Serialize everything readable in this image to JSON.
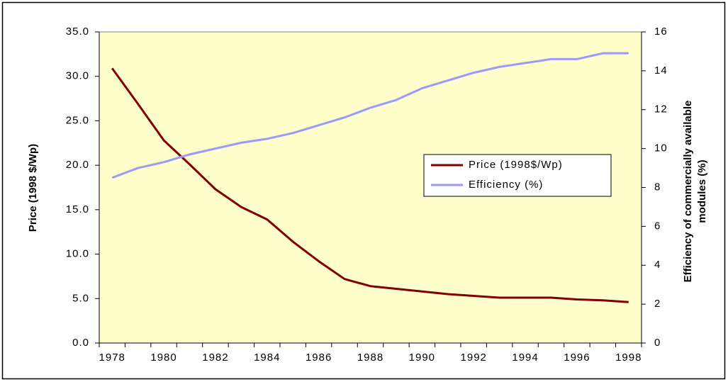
{
  "chart_data": {
    "type": "line",
    "categories": [
      "1978",
      null,
      "1980",
      null,
      "1982",
      null,
      "1984",
      null,
      "1986",
      null,
      "1988",
      null,
      "1990",
      null,
      "1992",
      null,
      "1994",
      null,
      "1996",
      null,
      "1998"
    ],
    "series": [
      {
        "name": "Price (1998$/Wp)",
        "color": "#800000",
        "axis": "y",
        "values": [
          30.9,
          26.9,
          22.8,
          20.1,
          17.3,
          15.3,
          13.9,
          11.4,
          9.2,
          7.2,
          6.4,
          6.1,
          5.8,
          5.5,
          5.3,
          5.1,
          5.1,
          5.1,
          4.9,
          4.8,
          4.6
        ]
      },
      {
        "name": "Efficiency (%)",
        "color": "#9999ff",
        "axis": "y2",
        "values": [
          8.5,
          9.0,
          9.3,
          9.7,
          10.0,
          10.3,
          10.5,
          10.8,
          11.2,
          11.6,
          12.1,
          12.5,
          13.1,
          13.5,
          13.9,
          14.2,
          14.4,
          14.6,
          14.6,
          14.9,
          14.9
        ]
      }
    ],
    "ylabel": "Price (1998 $/Wp)",
    "y2label": [
      "Efficiency of commercially available",
      "modules (%)"
    ],
    "ylim": [
      0,
      35
    ],
    "yticks": [
      {
        "value": 0,
        "label": "0.0"
      },
      {
        "value": 5,
        "label": "5.0"
      },
      {
        "value": 10,
        "label": "10.0"
      },
      {
        "value": 15,
        "label": "15.0"
      },
      {
        "value": 20,
        "label": "20.0"
      },
      {
        "value": 25,
        "label": "25.0"
      },
      {
        "value": 30,
        "label": "30.0"
      },
      {
        "value": 35,
        "label": "35.0"
      }
    ],
    "y2lim": [
      0,
      16
    ],
    "y2ticks": [
      0,
      2,
      4,
      6,
      8,
      10,
      12,
      14,
      16
    ],
    "grid": false,
    "legend": "right"
  }
}
